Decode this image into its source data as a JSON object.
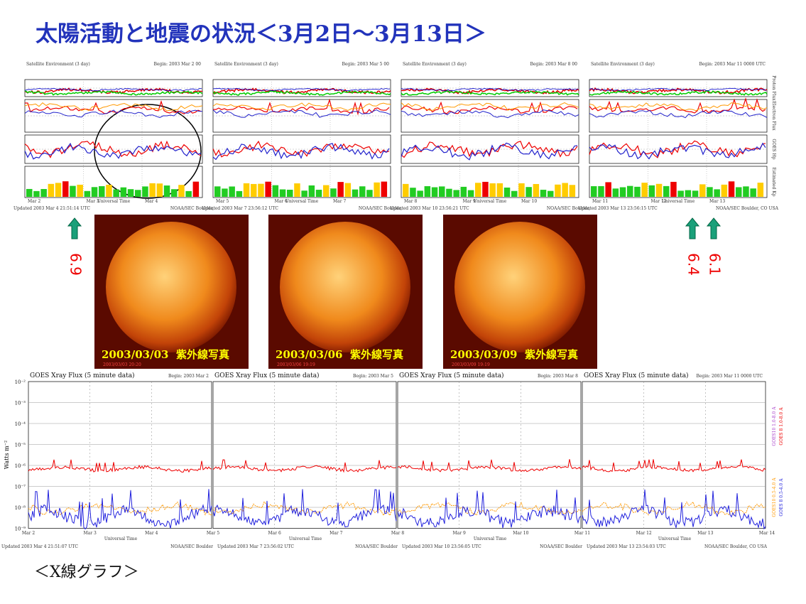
{
  "title": "太陽活動と地震の状況＜3月2日～3月13日＞",
  "satellite_panels": [
    {
      "header": "Satellite Environment (3 day)",
      "begin": "Begin: 2003 Mar 2 00",
      "x_ticks": [
        "Mar 2",
        "Mar 3",
        "Mar 4"
      ],
      "x_label": "Universal Time",
      "updated": "Updated 2003 Mar 4 21:51:14 UTC",
      "credit": "NOAA/SEC Boulder,"
    },
    {
      "header": "Satellite Environment (3 day)",
      "begin": "Begin: 2003 Mar 5 00",
      "x_ticks": [
        "Mar 5",
        "Mar 6",
        "Mar 7"
      ],
      "x_label": "Universal Time",
      "updated": "Updated 2003 Mar 7 23:56:12 UTC",
      "credit": "NOAA/SEC Boulder,"
    },
    {
      "header": "Satellite Environment (3 day)",
      "begin": "Begin: 2003 Mar 8 00",
      "x_ticks": [
        "Mar 8",
        "Mar 9",
        "Mar 10"
      ],
      "x_label": "Universal Time",
      "updated": "Updated 2003 Mar 10 23:56:21 UTC",
      "credit": "NOAA/SEC Boulder,"
    },
    {
      "header": "Satellite Environment (3 day)",
      "begin": "Begin: 2003 Mar 11 0000 UTC",
      "x_ticks": [
        "Mar 11",
        "Mar 12",
        "Mar 13"
      ],
      "x_label": "Universal Time",
      "updated": "Updated 2003 Mar 13 23:56:15 UTC",
      "credit": "NOAA/SEC Boulder, CO USA"
    }
  ],
  "panel_side_labels": [
    "Proton Flux",
    "Electron Flux",
    "GOES Hp",
    "Estimated Kp"
  ],
  "earthquakes": [
    {
      "magnitude": "6.9"
    },
    {
      "magnitude": "6.4"
    },
    {
      "magnitude": "6.1"
    }
  ],
  "sun_images": [
    {
      "date": "2003/03/03",
      "label": "紫外線写真",
      "timestamp": "2003/03/03 20:20"
    },
    {
      "date": "2003/03/06",
      "label": "紫外線写真",
      "timestamp": "2003/03/06 19:19"
    },
    {
      "date": "2003/03/09",
      "label": "紫外線写真",
      "timestamp": "2003/03/09 19:19"
    }
  ],
  "xray_panels": [
    {
      "header": "GOES Xray Flux (5 minute data)",
      "begin": "Begin:  2003 Mar 2",
      "updated": "Updated 2003 Mar  4 21:51:07 UTC",
      "credit": "NOAA/SEC Boulder"
    },
    {
      "header": "GOES Xray Flux (5 minute data)",
      "begin": "Begin:  2003 Mar 5",
      "updated": "Updated 2003 Mar  7 23:56:02 UTC",
      "credit": "NOAA/SEC Boulder"
    },
    {
      "header": "GOES Xray Flux (5 minute data)",
      "begin": "Begin:  2003 Mar 8",
      "updated": "Updated 2003 Mar 10 23:56:05 UTC",
      "credit": "NOAA/SEC Boulder"
    },
    {
      "header": "GOES Xray Flux (5 minute data)",
      "begin": "Begin:  2003 Mar 11 0000 UTC",
      "updated": "Updated 2003 Mar 13 23:54:03 UTC",
      "credit": "NOAA/SEC Boulder, CO USA"
    }
  ],
  "xray_axis": {
    "y_label": "Watts m⁻²",
    "y_ticks": [
      "10⁻²",
      "10⁻³",
      "10⁻⁴",
      "10⁻⁵",
      "10⁻⁶",
      "10⁻⁷",
      "10⁻⁸",
      "10⁻⁹"
    ],
    "x_ticks": [
      "Mar 2",
      "Mar 3",
      "Mar 4",
      "Mar 5",
      "Mar 6",
      "Mar 7",
      "Mar 8",
      "Mar 9",
      "Mar 10",
      "Mar 11",
      "Mar 12",
      "Mar 13",
      "Mar 14"
    ],
    "x_label": "Universal Time"
  },
  "xray_legend": [
    "GOES10 1.0-8.0 A",
    "GOES 8 1.0-8.0 A",
    "GOES10 0.5-4.0 A",
    "GOES 8 0.5-4.0 A"
  ],
  "footer": "＜X線グラフ＞"
}
